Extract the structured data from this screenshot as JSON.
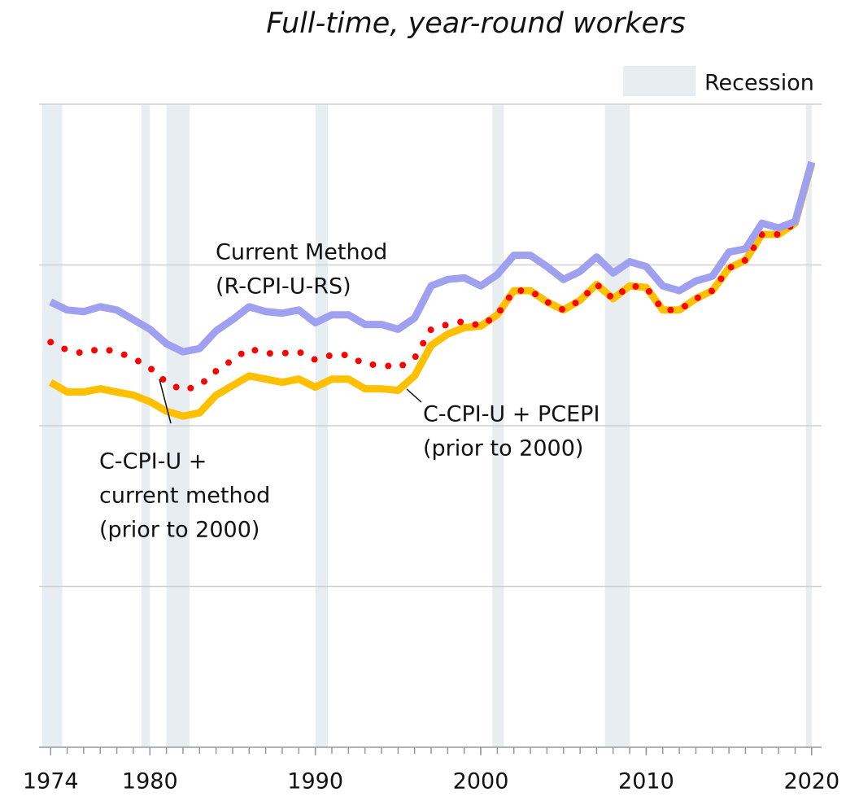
{
  "chart_data": {
    "type": "line",
    "title": "Full-time, year-round workers",
    "x": [
      1974,
      1975,
      1976,
      1977,
      1978,
      1979,
      1980,
      1981,
      1982,
      1983,
      1984,
      1985,
      1986,
      1987,
      1988,
      1989,
      1990,
      1991,
      1992,
      1993,
      1994,
      1995,
      1996,
      1997,
      1998,
      1999,
      2000,
      2001,
      2002,
      2003,
      2004,
      2005,
      2006,
      2007,
      2008,
      2009,
      2010,
      2011,
      2012,
      2013,
      2014,
      2015,
      2016,
      2017,
      2018,
      2019,
      2020
    ],
    "series": [
      {
        "label": [
          "C-CPI-U + PCEPI",
          "(prior to 2000)"
        ],
        "color": "#ffc000",
        "style": "solid",
        "values": [
          22.7,
          22.1,
          22.1,
          22.3,
          22.1,
          21.9,
          21.5,
          20.9,
          20.6,
          20.8,
          21.9,
          22.5,
          23.1,
          22.9,
          22.7,
          22.9,
          22.4,
          22.9,
          22.9,
          22.3,
          22.3,
          22.2,
          23.1,
          25.0,
          25.7,
          26.1,
          26.2,
          26.9,
          28.4,
          28.4,
          27.7,
          27.2,
          27.8,
          28.8,
          27.9,
          28.7,
          28.6,
          27.2,
          27.2,
          27.9,
          28.4,
          29.8,
          30.3,
          31.9,
          31.9,
          32.6,
          36.3
        ]
      },
      {
        "label": [
          "C-CPI-U +",
          "current method",
          "(prior to 2000)"
        ],
        "color": "#ff0000",
        "style": "dotted",
        "values": [
          25.2,
          24.7,
          24.5,
          24.8,
          24.6,
          24.2,
          23.6,
          22.7,
          22.2,
          22.5,
          23.4,
          24.1,
          24.8,
          24.5,
          24.5,
          24.6,
          24.1,
          24.4,
          24.4,
          23.8,
          23.8,
          23.6,
          24.2,
          26.0,
          26.3,
          26.5,
          26.2,
          26.9,
          28.4,
          28.4,
          27.7,
          27.2,
          27.8,
          28.8,
          27.9,
          28.7,
          28.6,
          27.2,
          27.2,
          27.9,
          28.4,
          29.8,
          30.3,
          31.9,
          31.9,
          32.6,
          36.3
        ]
      },
      {
        "label": [
          "Current Method",
          "(R-CPI-U-RS)"
        ],
        "color": "#a0a0f0",
        "style": "solid",
        "values": [
          27.7,
          27.2,
          27.1,
          27.4,
          27.2,
          26.6,
          26.0,
          25.1,
          24.6,
          24.8,
          25.9,
          26.6,
          27.4,
          27.1,
          27.0,
          27.2,
          26.4,
          26.9,
          26.9,
          26.3,
          26.3,
          26.0,
          26.7,
          28.7,
          29.1,
          29.2,
          28.7,
          29.4,
          30.6,
          30.6,
          29.9,
          29.1,
          29.6,
          30.5,
          29.5,
          30.2,
          29.9,
          28.7,
          28.4,
          29.0,
          29.3,
          30.8,
          31.0,
          32.6,
          32.3,
          32.7,
          36.4
        ]
      }
    ],
    "recession_label": "Recession",
    "recession_color": "#e8edf2",
    "recessions": [
      [
        1973.5,
        1974.7
      ],
      [
        1979.5,
        1980.0
      ],
      [
        1981.0,
        1982.4
      ],
      [
        1990.0,
        1990.75
      ],
      [
        2000.7,
        2001.4
      ],
      [
        2007.5,
        2009.0
      ],
      [
        2019.65,
        2020.0
      ]
    ],
    "xlim": [
      1973.3,
      2020.6
    ],
    "xticks": [
      1974,
      1980,
      1990,
      2000,
      2010,
      2020
    ],
    "ylim": [
      0,
      40
    ],
    "yticks": [
      0,
      10,
      20,
      30,
      40
    ],
    "show_ytick_labels": false,
    "grid": true
  }
}
